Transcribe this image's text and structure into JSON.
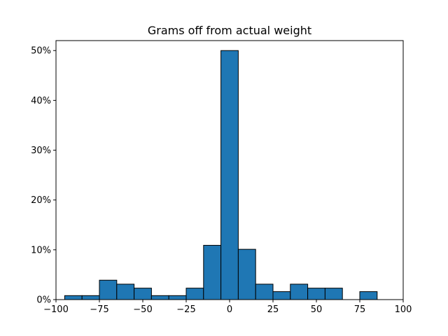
{
  "chart_data": {
    "type": "bar",
    "title": "Grams off from actual weight",
    "xlabel": "",
    "ylabel": "",
    "bar_color": "#1f77b4",
    "edge_color": "#000000",
    "grid": false,
    "xlim": [
      -100,
      100
    ],
    "ylim": [
      0,
      52
    ],
    "bin_edges": [
      -95,
      -85,
      -75,
      -65,
      -55,
      -45,
      -35,
      -25,
      -15,
      -5,
      5,
      15,
      25,
      35,
      45,
      55,
      65,
      75,
      85,
      95
    ],
    "values": [
      0.8,
      0.8,
      3.9,
      3.1,
      2.3,
      0.8,
      0.8,
      2.3,
      10.9,
      50.0,
      10.1,
      3.1,
      1.6,
      3.1,
      2.3,
      2.3,
      0.0,
      1.6,
      0.0
    ],
    "x_ticks": [
      {
        "value": -100,
        "label": "−100"
      },
      {
        "value": -75,
        "label": "−75"
      },
      {
        "value": -50,
        "label": "−50"
      },
      {
        "value": -25,
        "label": "−25"
      },
      {
        "value": 0,
        "label": "0"
      },
      {
        "value": 25,
        "label": "25"
      },
      {
        "value": 50,
        "label": "50"
      },
      {
        "value": 75,
        "label": "75"
      },
      {
        "value": 100,
        "label": "100"
      }
    ],
    "y_ticks": [
      {
        "value": 0,
        "label": "0%"
      },
      {
        "value": 10,
        "label": "10%"
      },
      {
        "value": 20,
        "label": "20%"
      },
      {
        "value": 30,
        "label": "30%"
      },
      {
        "value": 40,
        "label": "40%"
      },
      {
        "value": 50,
        "label": "50%"
      }
    ]
  }
}
